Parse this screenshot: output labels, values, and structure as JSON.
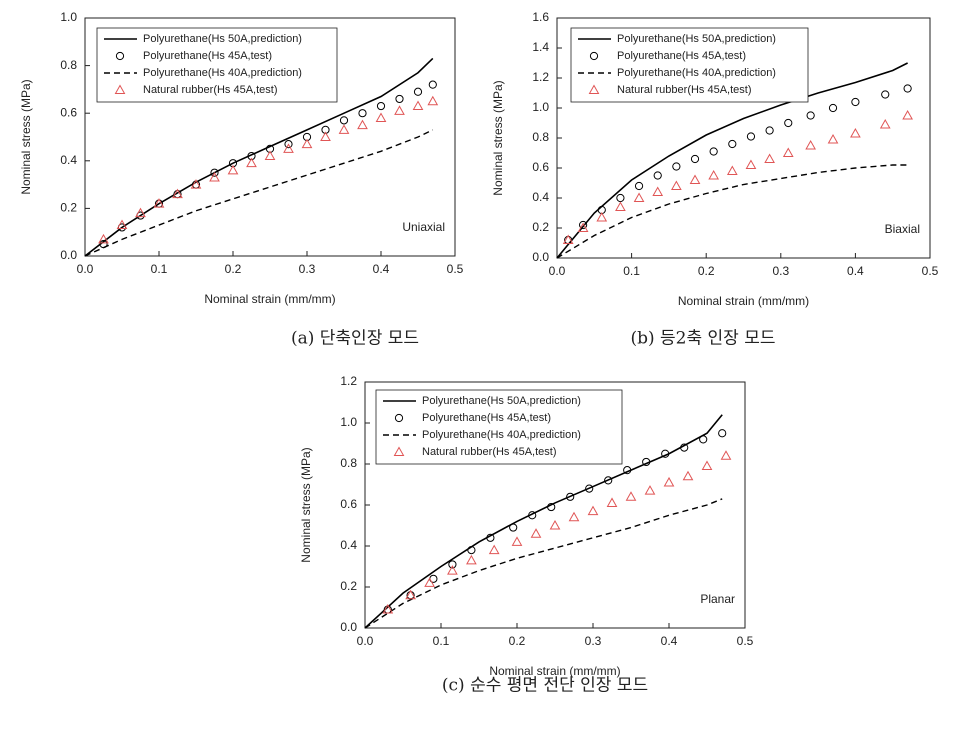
{
  "chart_data": [
    {
      "type": "line",
      "caption": "(a) 단축인장 모드",
      "xlabel": "Nominal strain (mm/mm)",
      "ylabel": "Nominal stress (MPa)",
      "annotation": "Uniaxial",
      "xlim": [
        0,
        0.5
      ],
      "ylim": [
        0,
        1.0
      ],
      "xticks": [
        {
          "value": 0,
          "label": "0.0"
        },
        0.1,
        0.2,
        0.3,
        0.4,
        0.5
      ],
      "yticks": [
        {
          "value": 0,
          "label": "0.0"
        },
        0.2,
        0.4,
        0.6,
        0.8,
        {
          "value": 1,
          "label": "1.0"
        }
      ],
      "series": [
        {
          "name": "Polyurethane(Hs 50A,prediction)",
          "color": "#000000",
          "style": "solid",
          "marker": "none",
          "x": [
            0,
            0.05,
            0.1,
            0.15,
            0.2,
            0.25,
            0.3,
            0.35,
            0.4,
            0.45,
            0.47
          ],
          "values": [
            0,
            0.12,
            0.22,
            0.31,
            0.39,
            0.46,
            0.53,
            0.6,
            0.67,
            0.77,
            0.83
          ]
        },
        {
          "name": "Polyurethane(Hs 45A,test)",
          "color": "#000000",
          "style": "none",
          "marker": "circle",
          "x": [
            0.025,
            0.05,
            0.075,
            0.1,
            0.125,
            0.15,
            0.175,
            0.2,
            0.225,
            0.25,
            0.275,
            0.3,
            0.325,
            0.35,
            0.375,
            0.4,
            0.425,
            0.45,
            0.47
          ],
          "values": [
            0.05,
            0.12,
            0.17,
            0.22,
            0.26,
            0.3,
            0.35,
            0.39,
            0.42,
            0.45,
            0.47,
            0.5,
            0.53,
            0.57,
            0.6,
            0.63,
            0.66,
            0.69,
            0.72
          ]
        },
        {
          "name": "Polyurethane(Hs 40A,prediction)",
          "color": "#000000",
          "style": "dashed",
          "marker": "none",
          "x": [
            0,
            0.05,
            0.1,
            0.15,
            0.2,
            0.25,
            0.3,
            0.35,
            0.4,
            0.45,
            0.47
          ],
          "values": [
            0,
            0.07,
            0.13,
            0.19,
            0.24,
            0.29,
            0.34,
            0.39,
            0.44,
            0.5,
            0.53
          ]
        },
        {
          "name": "Natural rubber(Hs 45A,test)",
          "color": "#e05555",
          "style": "none",
          "marker": "triangle",
          "x": [
            0.025,
            0.05,
            0.075,
            0.1,
            0.125,
            0.15,
            0.175,
            0.2,
            0.225,
            0.25,
            0.275,
            0.3,
            0.325,
            0.35,
            0.375,
            0.4,
            0.425,
            0.45,
            0.47
          ],
          "values": [
            0.07,
            0.13,
            0.18,
            0.22,
            0.26,
            0.3,
            0.33,
            0.36,
            0.39,
            0.42,
            0.45,
            0.47,
            0.5,
            0.53,
            0.55,
            0.58,
            0.61,
            0.63,
            0.65
          ]
        }
      ]
    },
    {
      "type": "line",
      "caption": "(b) 등2축 인장 모드",
      "xlabel": "Nominal strain (mm/mm)",
      "ylabel": "Nominal stress (MPa)",
      "annotation": "Biaxial",
      "xlim": [
        0,
        0.5
      ],
      "ylim": [
        0,
        1.6
      ],
      "xticks": [
        {
          "value": 0,
          "label": "0.0"
        },
        0.1,
        0.2,
        0.3,
        0.4,
        0.5
      ],
      "yticks": [
        {
          "value": 0,
          "label": "0.0"
        },
        0.2,
        0.4,
        0.6,
        0.8,
        {
          "value": 1,
          "label": "1.0"
        },
        1.2,
        1.4,
        1.6
      ],
      "series": [
        {
          "name": "Polyurethane(Hs 50A,prediction)",
          "color": "#000000",
          "style": "solid",
          "marker": "none",
          "x": [
            0,
            0.05,
            0.1,
            0.15,
            0.2,
            0.25,
            0.3,
            0.35,
            0.4,
            0.45,
            0.47
          ],
          "values": [
            0,
            0.3,
            0.52,
            0.68,
            0.82,
            0.93,
            1.02,
            1.1,
            1.17,
            1.25,
            1.3
          ]
        },
        {
          "name": "Polyurethane(Hs 45A,test)",
          "color": "#000000",
          "style": "none",
          "marker": "circle",
          "x": [
            0.015,
            0.035,
            0.06,
            0.085,
            0.11,
            0.135,
            0.16,
            0.185,
            0.21,
            0.235,
            0.26,
            0.285,
            0.31,
            0.34,
            0.37,
            0.4,
            0.44,
            0.47
          ],
          "values": [
            0.12,
            0.22,
            0.32,
            0.4,
            0.48,
            0.55,
            0.61,
            0.66,
            0.71,
            0.76,
            0.81,
            0.85,
            0.9,
            0.95,
            1.0,
            1.04,
            1.09,
            1.13
          ]
        },
        {
          "name": "Polyurethane(Hs 40A,prediction)",
          "color": "#000000",
          "style": "dashed",
          "marker": "none",
          "x": [
            0,
            0.05,
            0.1,
            0.15,
            0.2,
            0.25,
            0.3,
            0.35,
            0.4,
            0.45,
            0.47
          ],
          "values": [
            0,
            0.15,
            0.27,
            0.36,
            0.43,
            0.49,
            0.53,
            0.57,
            0.6,
            0.62,
            0.62
          ]
        },
        {
          "name": "Natural rubber(Hs 45A,test)",
          "color": "#e05555",
          "style": "none",
          "marker": "triangle",
          "x": [
            0.015,
            0.035,
            0.06,
            0.085,
            0.11,
            0.135,
            0.16,
            0.185,
            0.21,
            0.235,
            0.26,
            0.285,
            0.31,
            0.34,
            0.37,
            0.4,
            0.44,
            0.47
          ],
          "values": [
            0.12,
            0.2,
            0.27,
            0.34,
            0.4,
            0.44,
            0.48,
            0.52,
            0.55,
            0.58,
            0.62,
            0.66,
            0.7,
            0.75,
            0.79,
            0.83,
            0.89,
            0.95
          ]
        }
      ]
    },
    {
      "type": "line",
      "caption": "(c) 순수 평면 전단 인장 모드",
      "xlabel": "Nominal strain (mm/mm)",
      "ylabel": "Nominal stress (MPa)",
      "annotation": "Planar",
      "xlim": [
        0,
        0.5
      ],
      "ylim": [
        0,
        1.2
      ],
      "xticks": [
        {
          "value": 0,
          "label": "0.0"
        },
        0.1,
        0.2,
        0.3,
        0.4,
        0.5
      ],
      "yticks": [
        {
          "value": 0,
          "label": "0.0"
        },
        0.2,
        0.4,
        0.6,
        0.8,
        {
          "value": 1,
          "label": "1.0"
        },
        1.2
      ],
      "series": [
        {
          "name": "Polyurethane(Hs 50A,prediction)",
          "color": "#000000",
          "style": "solid",
          "marker": "none",
          "x": [
            0,
            0.05,
            0.1,
            0.15,
            0.2,
            0.25,
            0.3,
            0.35,
            0.4,
            0.45,
            0.47
          ],
          "values": [
            0,
            0.17,
            0.3,
            0.42,
            0.52,
            0.61,
            0.69,
            0.77,
            0.85,
            0.95,
            1.04
          ]
        },
        {
          "name": "Polyurethane(Hs 45A,test)",
          "color": "#000000",
          "style": "none",
          "marker": "circle",
          "x": [
            0.03,
            0.06,
            0.09,
            0.115,
            0.14,
            0.165,
            0.195,
            0.22,
            0.245,
            0.27,
            0.295,
            0.32,
            0.345,
            0.37,
            0.395,
            0.42,
            0.445,
            0.47
          ],
          "values": [
            0.09,
            0.16,
            0.24,
            0.31,
            0.38,
            0.44,
            0.49,
            0.55,
            0.59,
            0.64,
            0.68,
            0.72,
            0.77,
            0.81,
            0.85,
            0.88,
            0.92,
            0.95
          ]
        },
        {
          "name": "Polyurethane(Hs 40A,prediction)",
          "color": "#000000",
          "style": "dashed",
          "marker": "none",
          "x": [
            0,
            0.05,
            0.1,
            0.15,
            0.2,
            0.25,
            0.3,
            0.35,
            0.4,
            0.45,
            0.47
          ],
          "values": [
            0,
            0.12,
            0.21,
            0.28,
            0.34,
            0.39,
            0.44,
            0.49,
            0.55,
            0.6,
            0.63
          ]
        },
        {
          "name": "Natural rubber(Hs 45A,test)",
          "color": "#e05555",
          "style": "none",
          "marker": "triangle",
          "x": [
            0.03,
            0.06,
            0.085,
            0.115,
            0.14,
            0.17,
            0.2,
            0.225,
            0.25,
            0.275,
            0.3,
            0.325,
            0.35,
            0.375,
            0.4,
            0.425,
            0.45,
            0.475
          ],
          "values": [
            0.09,
            0.16,
            0.22,
            0.28,
            0.33,
            0.38,
            0.42,
            0.46,
            0.5,
            0.54,
            0.57,
            0.61,
            0.64,
            0.67,
            0.71,
            0.74,
            0.79,
            0.84
          ]
        }
      ]
    }
  ]
}
